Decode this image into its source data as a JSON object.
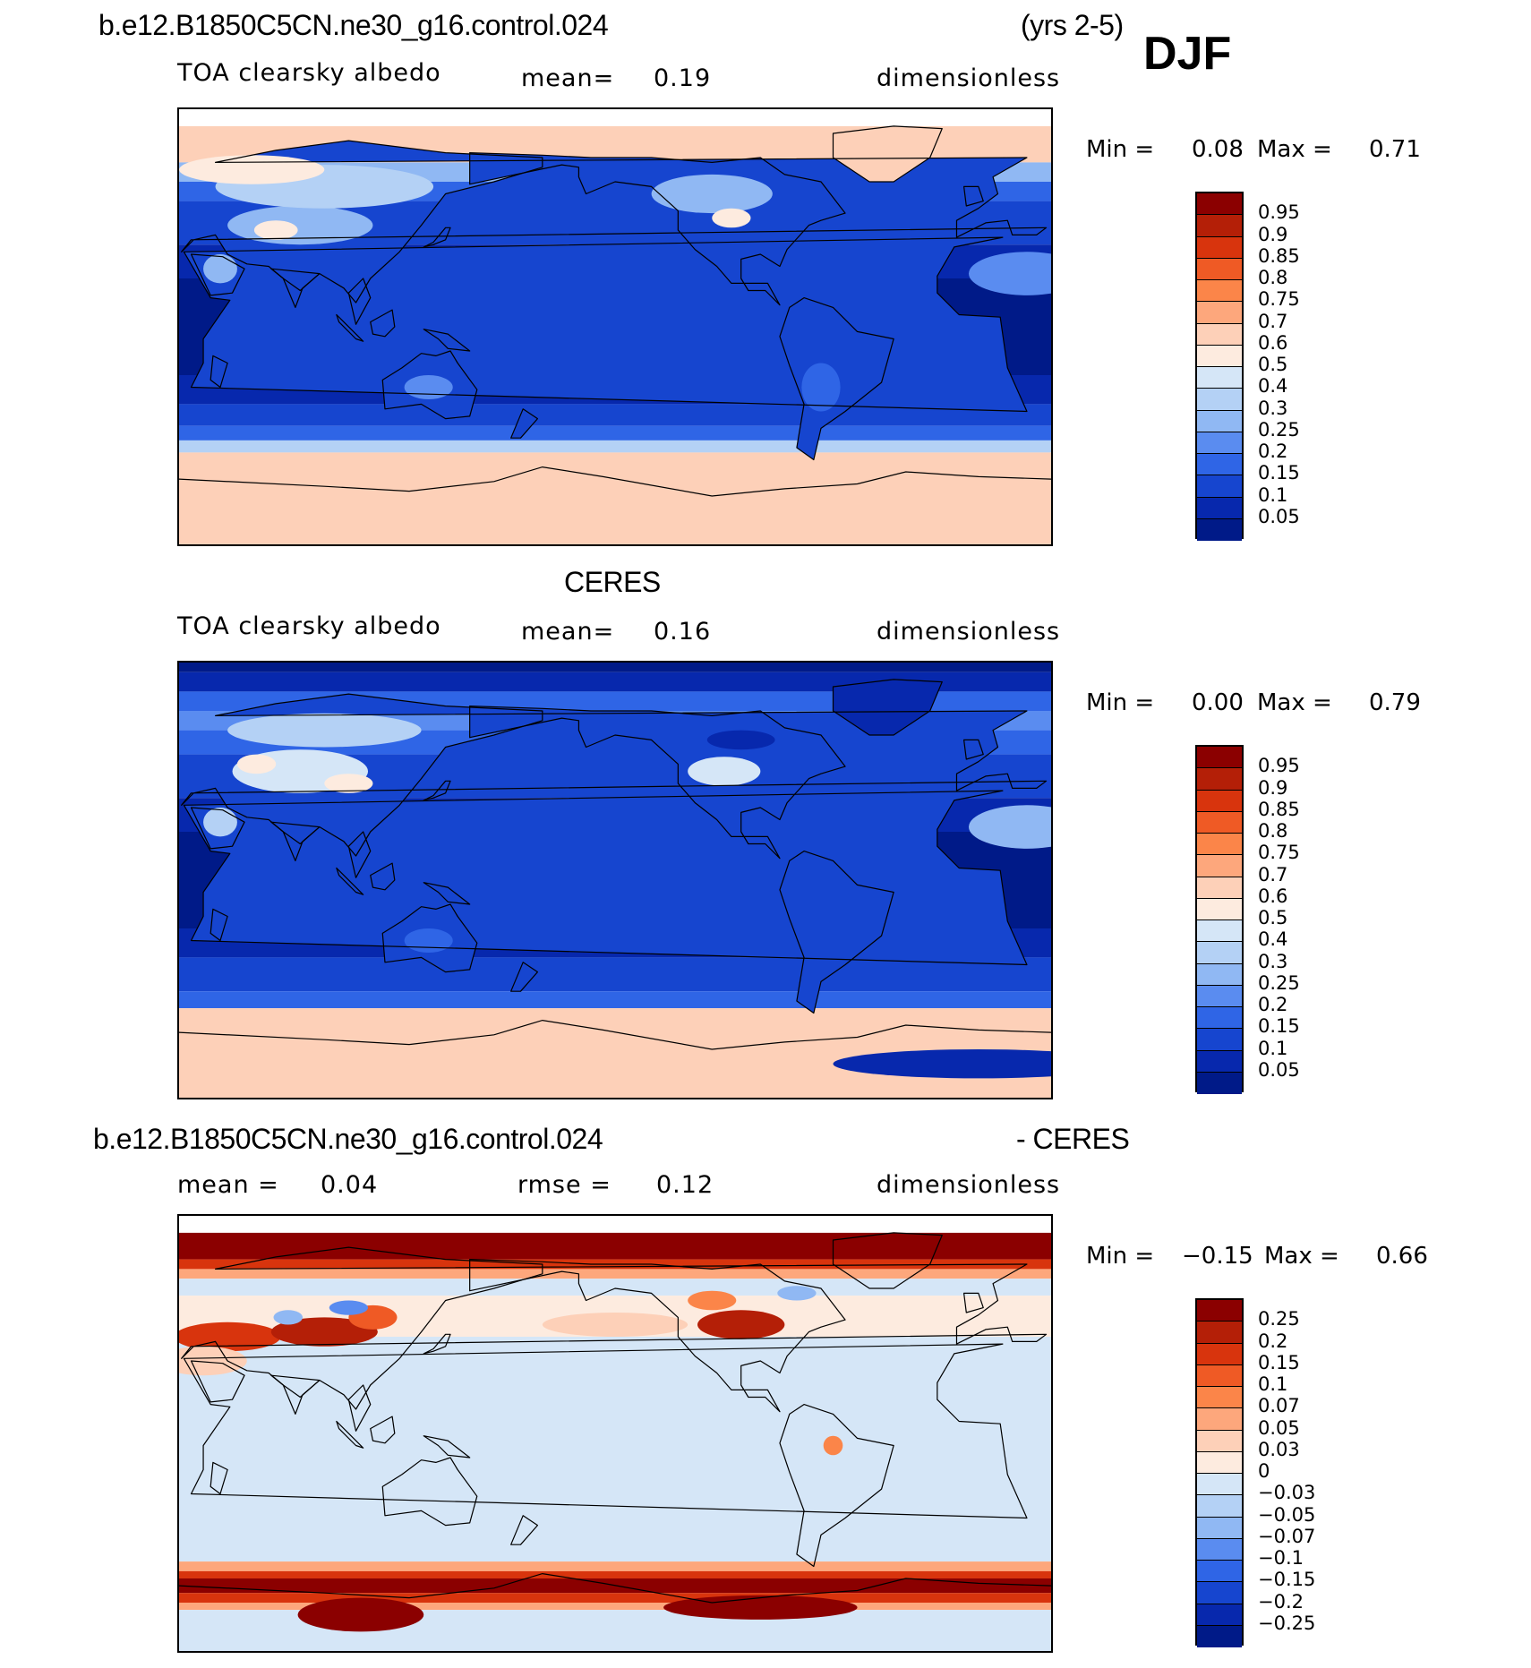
{
  "header": {
    "case_name": "b.e12.B1850C5CN.ne30_g16.control.024",
    "years": "(yrs 2-5)",
    "season": "DJF"
  },
  "panels": [
    {
      "id": "model",
      "title_left": "",
      "subtitle_left": "TOA clearsky albedo",
      "mean_label": "mean=",
      "mean_value": "0.19",
      "units": "dimensionless",
      "min_label": "Min =",
      "min_value": "0.08",
      "max_label": "Max =",
      "max_value": "0.71",
      "colorbar_labels": [
        "0.95",
        "0.9",
        "0.85",
        "0.8",
        "0.75",
        "0.7",
        "0.6",
        "0.5",
        "0.4",
        "0.3",
        "0.25",
        "0.2",
        "0.15",
        "0.1",
        "0.05"
      ],
      "colorbar_colors": [
        "#8b0000",
        "#b41f07",
        "#d8340d",
        "#ef5a25",
        "#fb8549",
        "#fda77c",
        "#fdd0b8",
        "#fdebdf",
        "#d5e6f7",
        "#b4d1f5",
        "#90b8f3",
        "#5a8cf0",
        "#2f65e6",
        "#1645cf",
        "#0728ad",
        "#001a88"
      ]
    },
    {
      "id": "obs",
      "title_center": "CERES",
      "subtitle_left": "TOA clearsky albedo",
      "mean_label": "mean=",
      "mean_value": "0.16",
      "units": "dimensionless",
      "min_label": "Min =",
      "min_value": "0.00",
      "max_label": "Max =",
      "max_value": "0.79",
      "colorbar_labels": [
        "0.95",
        "0.9",
        "0.85",
        "0.8",
        "0.75",
        "0.7",
        "0.6",
        "0.5",
        "0.4",
        "0.3",
        "0.25",
        "0.2",
        "0.15",
        "0.1",
        "0.05"
      ],
      "colorbar_colors": [
        "#8b0000",
        "#b41f07",
        "#d8340d",
        "#ef5a25",
        "#fb8549",
        "#fda77c",
        "#fdd0b8",
        "#fdebdf",
        "#d5e6f7",
        "#b4d1f5",
        "#90b8f3",
        "#5a8cf0",
        "#2f65e6",
        "#1645cf",
        "#0728ad",
        "#001a88"
      ]
    },
    {
      "id": "diff",
      "title_left": "b.e12.B1850C5CN.ne30_g16.control.024",
      "title_right": "- CERES",
      "mean_label": "mean =",
      "mean_value": "0.04",
      "rmse_label": "rmse =",
      "rmse_value": "0.12",
      "units": "dimensionless",
      "min_label": "Min =",
      "min_value": "−0.15",
      "max_label": "Max =",
      "max_value": "0.66",
      "colorbar_labels": [
        "0.25",
        "0.2",
        "0.15",
        "0.1",
        "0.07",
        "0.05",
        "0.03",
        "0",
        "−0.03",
        "−0.05",
        "−0.07",
        "−0.1",
        "−0.15",
        "−0.2",
        "−0.25"
      ],
      "colorbar_colors": [
        "#8b0000",
        "#b41f07",
        "#d8340d",
        "#ef5a25",
        "#fb8549",
        "#fda77c",
        "#fdd0b8",
        "#fdebdf",
        "#d5e6f7",
        "#b4d1f5",
        "#90b8f3",
        "#5a8cf0",
        "#2f65e6",
        "#1645cf",
        "#0728ad",
        "#001a88"
      ]
    }
  ]
}
